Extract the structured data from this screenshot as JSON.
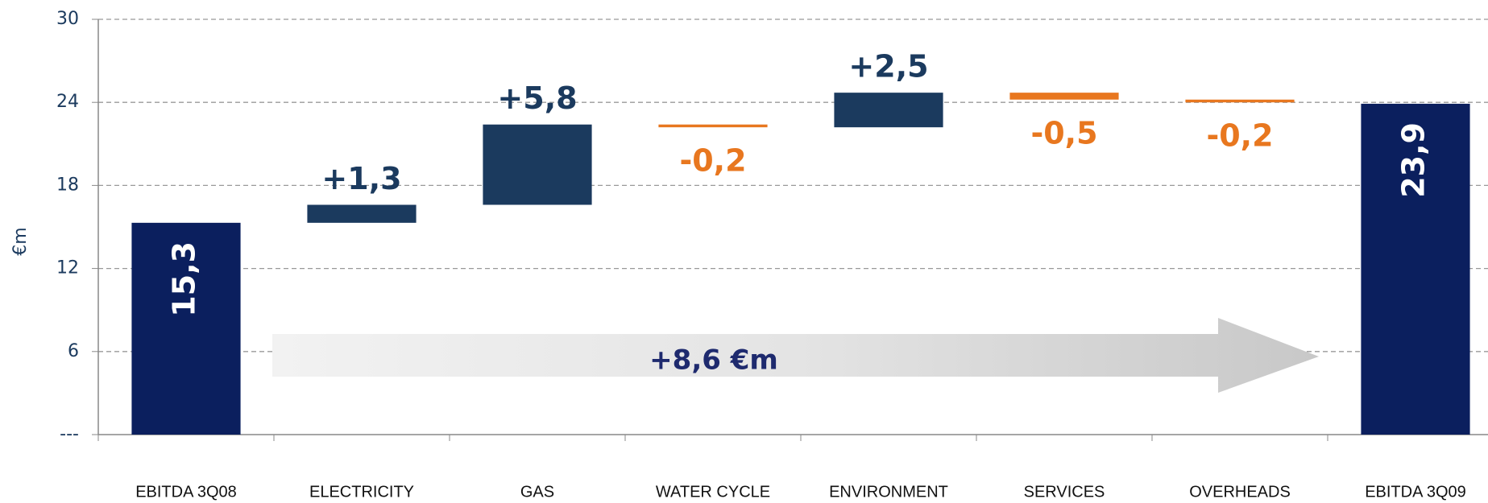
{
  "chart_data": {
    "type": "waterfall",
    "categories": [
      "EBITDA 3Q08",
      "ELECTRICITY",
      "GAS",
      "WATER CYCLE",
      "ENVIRONMENT",
      "SERVICES",
      "OVERHEADS",
      "EBITDA 3Q09"
    ],
    "values": [
      15.3,
      1.3,
      5.8,
      -0.2,
      2.5,
      -0.5,
      -0.2,
      23.9
    ],
    "value_labels": [
      "15,3",
      "+1,3",
      "+5,8",
      "-0,2",
      "+2,5",
      "-0,5",
      "-0,2",
      "23,9"
    ],
    "measure": [
      "total",
      "relative",
      "relative",
      "relative",
      "relative",
      "relative",
      "relative",
      "total"
    ],
    "colors": {
      "total": "#0b1f5e",
      "increase": "#1b3a5e",
      "decrease": "#e8771f"
    },
    "ylabel": "€m",
    "ylim": [
      0,
      30
    ],
    "yticks": [
      {
        "value": 0,
        "label": "---"
      },
      6,
      12,
      18,
      24,
      30
    ],
    "grid": true,
    "annotation": "+8,6 €m"
  }
}
